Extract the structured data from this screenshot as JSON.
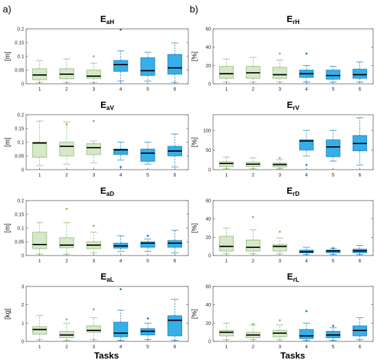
{
  "panel_labels": [
    "a)",
    "b)"
  ],
  "x_axis_label": "Tasks",
  "colors": {
    "green_fill": "#d5e8c8",
    "green_edge": "#8cb874",
    "blue_fill": "#36aee6",
    "blue_edge": "#1b7fc0",
    "median": "#000000",
    "axis": "#444444"
  },
  "chart_data": [
    {
      "type": "box",
      "id": "EaH",
      "title": {
        "main": "E",
        "sub": "aH"
      },
      "ylabel": "[m]",
      "ylim": [
        0,
        0.2
      ],
      "yticks": [
        "0",
        "0.05",
        "0.1",
        "0.15",
        "0.2"
      ],
      "categories": [
        "1",
        "2",
        "3",
        "4",
        "5",
        "6"
      ],
      "boxes": [
        {
          "task": 1,
          "min": 0.005,
          "q1": 0.015,
          "median": 0.032,
          "q3": 0.055,
          "max": 0.085,
          "outliers": []
        },
        {
          "task": 2,
          "min": 0.005,
          "q1": 0.018,
          "median": 0.035,
          "q3": 0.055,
          "max": 0.09,
          "outliers": []
        },
        {
          "task": 3,
          "min": 0.005,
          "q1": 0.02,
          "median": 0.028,
          "q3": 0.05,
          "max": 0.075,
          "outliers": [
            0.1
          ]
        },
        {
          "task": 4,
          "min": 0.01,
          "q1": 0.045,
          "median": 0.07,
          "q3": 0.085,
          "max": 0.12,
          "outliers": [
            0.197
          ]
        },
        {
          "task": 5,
          "min": 0.01,
          "q1": 0.03,
          "median": 0.048,
          "q3": 0.095,
          "max": 0.115,
          "outliers": []
        },
        {
          "task": 6,
          "min": 0.005,
          "q1": 0.035,
          "median": 0.058,
          "q3": 0.107,
          "max": 0.148,
          "outliers": []
        }
      ]
    },
    {
      "type": "box",
      "id": "ErH",
      "title": {
        "main": "E",
        "sub": "rH"
      },
      "ylabel": "[%]",
      "ylim": [
        0,
        60
      ],
      "yticks": [
        "0",
        "20",
        "40",
        "60"
      ],
      "categories": [
        "1",
        "2",
        "3",
        "4",
        "5",
        "6"
      ],
      "boxes": [
        {
          "task": 1,
          "min": 2,
          "q1": 6,
          "median": 11,
          "q3": 19,
          "max": 27,
          "outliers": []
        },
        {
          "task": 2,
          "min": 2,
          "q1": 6,
          "median": 12,
          "q3": 19,
          "max": 29,
          "outliers": []
        },
        {
          "task": 3,
          "min": 2,
          "q1": 6,
          "median": 10,
          "q3": 18,
          "max": 26,
          "outliers": [
            33
          ]
        },
        {
          "task": 4,
          "min": 2,
          "q1": 7,
          "median": 11,
          "q3": 15,
          "max": 20,
          "outliers": [
            33
          ]
        },
        {
          "task": 5,
          "min": 2,
          "q1": 5,
          "median": 9,
          "q3": 15,
          "max": 19,
          "outliers": []
        },
        {
          "task": 6,
          "min": 2,
          "q1": 6,
          "median": 10,
          "q3": 16,
          "max": 24,
          "outliers": []
        }
      ]
    },
    {
      "type": "box",
      "id": "EaV",
      "title": {
        "main": "E",
        "sub": "aV"
      },
      "ylabel": "[m]",
      "ylim": [
        0,
        0.2
      ],
      "yticks": [
        "0",
        "0.05",
        "0.1",
        "0.15",
        "0.2"
      ],
      "categories": [
        "1",
        "2",
        "3",
        "4",
        "5",
        "6"
      ],
      "boxes": [
        {
          "task": 1,
          "min": 0.015,
          "q1": 0.045,
          "median": 0.097,
          "q3": 0.1,
          "max": 0.177,
          "outliers": []
        },
        {
          "task": 2,
          "min": 0.02,
          "q1": 0.05,
          "median": 0.085,
          "q3": 0.1,
          "max": 0.173,
          "outliers": [
            0.165
          ]
        },
        {
          "task": 3,
          "min": 0.025,
          "q1": 0.055,
          "median": 0.08,
          "q3": 0.095,
          "max": 0.105,
          "outliers": [
            0.177
          ]
        },
        {
          "task": 4,
          "min": 0.035,
          "q1": 0.055,
          "median": 0.072,
          "q3": 0.075,
          "max": 0.1,
          "outliers": [
            0.01
          ]
        },
        {
          "task": 5,
          "min": 0.02,
          "q1": 0.03,
          "median": 0.06,
          "q3": 0.075,
          "max": 0.1,
          "outliers": []
        },
        {
          "task": 6,
          "min": 0.01,
          "q1": 0.05,
          "median": 0.068,
          "q3": 0.085,
          "max": 0.13,
          "outliers": []
        }
      ]
    },
    {
      "type": "box",
      "id": "ErV",
      "title": {
        "main": "E",
        "sub": "rV"
      },
      "ylabel": "[%]",
      "ylim": [
        0,
        140
      ],
      "yticks": [
        "0",
        "50",
        "100"
      ],
      "categories": [
        "1",
        "2",
        "3",
        "4",
        "5",
        "6"
      ],
      "boxes": [
        {
          "task": 1,
          "min": 3,
          "q1": 8,
          "median": 16,
          "q3": 20,
          "max": 32,
          "outliers": []
        },
        {
          "task": 2,
          "min": 3,
          "q1": 8,
          "median": 14,
          "q3": 19,
          "max": 30,
          "outliers": []
        },
        {
          "task": 3,
          "min": 3,
          "q1": 7,
          "median": 13,
          "q3": 17,
          "max": 25,
          "outliers": [
            30
          ]
        },
        {
          "task": 4,
          "min": 35,
          "q1": 50,
          "median": 73,
          "q3": 76,
          "max": 100,
          "outliers": [
            12
          ]
        },
        {
          "task": 5,
          "min": 22,
          "q1": 33,
          "median": 58,
          "q3": 76,
          "max": 100,
          "outliers": []
        },
        {
          "task": 6,
          "min": 12,
          "q1": 48,
          "median": 67,
          "q3": 87,
          "max": 132,
          "outliers": []
        }
      ]
    },
    {
      "type": "box",
      "id": "EaD",
      "title": {
        "main": "E",
        "sub": "aD"
      },
      "ylabel": "[m]",
      "ylim": [
        0,
        0.2
      ],
      "yticks": [
        "0",
        "0.05",
        "0.1",
        "0.15",
        "0.2"
      ],
      "categories": [
        "1",
        "2",
        "3",
        "4",
        "5",
        "6"
      ],
      "boxes": [
        {
          "task": 1,
          "min": 0.005,
          "q1": 0.025,
          "median": 0.04,
          "q3": 0.085,
          "max": 0.12,
          "outliers": []
        },
        {
          "task": 2,
          "min": 0.005,
          "q1": 0.028,
          "median": 0.038,
          "q3": 0.065,
          "max": 0.12,
          "outliers": [
            0.17
          ]
        },
        {
          "task": 3,
          "min": 0.01,
          "q1": 0.025,
          "median": 0.038,
          "q3": 0.05,
          "max": 0.085,
          "outliers": [
            0.108
          ]
        },
        {
          "task": 4,
          "min": 0.015,
          "q1": 0.027,
          "median": 0.035,
          "q3": 0.045,
          "max": 0.072,
          "outliers": []
        },
        {
          "task": 5,
          "min": 0.015,
          "q1": 0.03,
          "median": 0.045,
          "q3": 0.05,
          "max": 0.06,
          "outliers": [
            0.072
          ]
        },
        {
          "task": 6,
          "min": 0.01,
          "q1": 0.03,
          "median": 0.045,
          "q3": 0.055,
          "max": 0.092,
          "outliers": []
        }
      ]
    },
    {
      "type": "box",
      "id": "ErD",
      "title": {
        "main": "E",
        "sub": "rD"
      },
      "ylabel": "[%]",
      "ylim": [
        0,
        60
      ],
      "yticks": [
        "0",
        "20",
        "40",
        "60"
      ],
      "categories": [
        "1",
        "2",
        "3",
        "4",
        "5",
        "6"
      ],
      "boxes": [
        {
          "task": 1,
          "min": 2,
          "q1": 5,
          "median": 10,
          "q3": 21,
          "max": 30,
          "outliers": []
        },
        {
          "task": 2,
          "min": 2,
          "q1": 5,
          "median": 9,
          "q3": 17,
          "max": 28,
          "outliers": [
            42
          ]
        },
        {
          "task": 3,
          "min": 2,
          "q1": 5,
          "median": 10,
          "q3": 12,
          "max": 19,
          "outliers": [
            26
          ]
        },
        {
          "task": 4,
          "min": 1,
          "q1": 3,
          "median": 4,
          "q3": 6,
          "max": 9,
          "outliers": []
        },
        {
          "task": 5,
          "min": 1,
          "q1": 3,
          "median": 5,
          "q3": 6,
          "max": 8,
          "outliers": [
            8
          ]
        },
        {
          "task": 6,
          "min": 1,
          "q1": 3,
          "median": 5,
          "q3": 7,
          "max": 11,
          "outliers": []
        }
      ]
    },
    {
      "type": "box",
      "id": "EaL",
      "title": {
        "main": "E",
        "sub": "aL"
      },
      "ylabel": "[kg]",
      "ylim": [
        0,
        3
      ],
      "yticks": [
        "0",
        "1",
        "2",
        "3"
      ],
      "categories": [
        "1",
        "2",
        "3",
        "4",
        "5",
        "6"
      ],
      "boxes": [
        {
          "task": 1,
          "min": 0.1,
          "q1": 0.4,
          "median": 0.65,
          "q3": 0.8,
          "max": 1.4,
          "outliers": []
        },
        {
          "task": 2,
          "min": 0.05,
          "q1": 0.2,
          "median": 0.35,
          "q3": 0.55,
          "max": 1.0,
          "outliers": [
            1.2
          ]
        },
        {
          "task": 3,
          "min": 0.1,
          "q1": 0.5,
          "median": 0.6,
          "q3": 0.85,
          "max": 1.3,
          "outliers": [
            1.75
          ]
        },
        {
          "task": 4,
          "min": 0.05,
          "q1": 0.25,
          "median": 0.45,
          "q3": 1.05,
          "max": 1.7,
          "outliers": [
            2.85
          ]
        },
        {
          "task": 5,
          "min": 0.1,
          "q1": 0.35,
          "median": 0.55,
          "q3": 0.7,
          "max": 1.0,
          "outliers": [
            1.25
          ]
        },
        {
          "task": 6,
          "min": 0.05,
          "q1": 0.3,
          "median": 1.15,
          "q3": 1.4,
          "max": 2.3,
          "outliers": []
        }
      ]
    },
    {
      "type": "box",
      "id": "ErL",
      "title": {
        "main": "E",
        "sub": "rL"
      },
      "ylabel": "[%]",
      "ylim": [
        0,
        60
      ],
      "yticks": [
        "0",
        "20",
        "40",
        "60"
      ],
      "categories": [
        "1",
        "2",
        "3",
        "4",
        "5",
        "6"
      ],
      "boxes": [
        {
          "task": 1,
          "min": 2,
          "q1": 6,
          "median": 10,
          "q3": 12,
          "max": 20,
          "outliers": []
        },
        {
          "task": 2,
          "min": 2,
          "q1": 4,
          "median": 7,
          "q3": 10,
          "max": 18,
          "outliers": [
            19
          ]
        },
        {
          "task": 3,
          "min": 2,
          "q1": 5,
          "median": 9,
          "q3": 12,
          "max": 18,
          "outliers": [
            23
          ]
        },
        {
          "task": 4,
          "min": 1,
          "q1": 3,
          "median": 6,
          "q3": 13,
          "max": 20,
          "outliers": [
            33
          ]
        },
        {
          "task": 5,
          "min": 1,
          "q1": 4,
          "median": 7,
          "q3": 11,
          "max": 15,
          "outliers": [
            17
          ]
        },
        {
          "task": 6,
          "min": 2,
          "q1": 6,
          "median": 12,
          "q3": 17,
          "max": 26,
          "outliers": []
        }
      ]
    }
  ]
}
